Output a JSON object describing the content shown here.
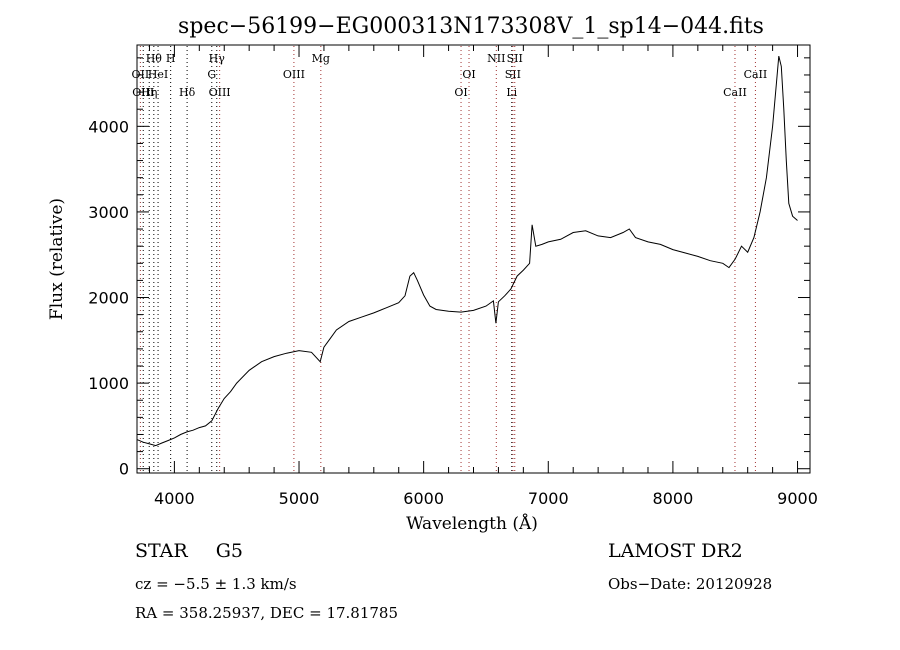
{
  "chart_data": {
    "type": "line",
    "title": "spec−56199−EG000313N173308V_1_sp14−044.fits",
    "xlabel": "Wavelength (Å)",
    "ylabel": "Flux (relative)",
    "xlim": [
      3700,
      9100
    ],
    "ylim": [
      -50,
      4950
    ],
    "xticks": [
      4000,
      5000,
      6000,
      7000,
      8000,
      9000
    ],
    "yticks": [
      0,
      1000,
      2000,
      3000,
      4000
    ],
    "grid": false,
    "series": [
      {
        "x": [
          3700,
          3750,
          3800,
          3850,
          3900,
          3950,
          4000,
          4050,
          4100,
          4150,
          4200,
          4250,
          4300,
          4350,
          4400,
          4450,
          4500,
          4600,
          4700,
          4800,
          4900,
          5000,
          5100,
          5170,
          5200,
          5250,
          5300,
          5400,
          5500,
          5600,
          5700,
          5800,
          5850,
          5890,
          5920,
          5950,
          6000,
          6050,
          6100,
          6200,
          6300,
          6400,
          6500,
          6560,
          6580,
          6600,
          6650,
          6700,
          6750,
          6800,
          6850,
          6870,
          6900,
          6950,
          7000,
          7100,
          7200,
          7300,
          7400,
          7500,
          7600,
          7650,
          7700,
          7800,
          7900,
          8000,
          8100,
          8200,
          8300,
          8400,
          8450,
          8500,
          8550,
          8600,
          8650,
          8700,
          8750,
          8800,
          8830,
          8850,
          8870,
          8890,
          8910,
          8930,
          8960,
          9000
        ],
        "y": [
          340,
          310,
          290,
          270,
          300,
          330,
          360,
          400,
          430,
          450,
          480,
          500,
          560,
          700,
          820,
          900,
          1000,
          1150,
          1250,
          1310,
          1350,
          1380,
          1360,
          1250,
          1420,
          1520,
          1620,
          1720,
          1770,
          1820,
          1880,
          1940,
          2020,
          2250,
          2290,
          2200,
          2030,
          1900,
          1860,
          1840,
          1830,
          1850,
          1900,
          1960,
          1700,
          1950,
          2020,
          2100,
          2250,
          2320,
          2400,
          2850,
          2600,
          2620,
          2650,
          2680,
          2760,
          2780,
          2720,
          2700,
          2760,
          2800,
          2700,
          2650,
          2620,
          2560,
          2520,
          2480,
          2430,
          2400,
          2350,
          2450,
          2600,
          2530,
          2700,
          3000,
          3400,
          4000,
          4500,
          4820,
          4700,
          4200,
          3600,
          3100,
          2950,
          2900
        ]
      }
    ],
    "lines": [
      {
        "wavelength": 3727,
        "label": "OII",
        "row": 2,
        "color": "#a03030"
      },
      {
        "wavelength": 3750,
        "label": "OIII",
        "row": 3,
        "color": "#000000"
      },
      {
        "wavelength": 3798,
        "label": "Hη",
        "row": 3,
        "color": "#000000"
      },
      {
        "wavelength": 3835,
        "label": "Hθ",
        "row": 1,
        "color": "#000000"
      },
      {
        "wavelength": 3869,
        "label": "HeI",
        "row": 2,
        "color": "#000000"
      },
      {
        "wavelength": 3970,
        "label": "H",
        "row": 1,
        "color": "#000000"
      },
      {
        "wavelength": 4102,
        "label": "Hδ",
        "row": 3,
        "color": "#000000"
      },
      {
        "wavelength": 4300,
        "label": "G",
        "row": 2,
        "color": "#000000"
      },
      {
        "wavelength": 4340,
        "label": "Hγ",
        "row": 1,
        "color": "#000000"
      },
      {
        "wavelength": 4363,
        "label": "OIII",
        "row": 3,
        "color": "#a03030"
      },
      {
        "wavelength": 4959,
        "label": "OIII",
        "row": 2,
        "color": "#a03030"
      },
      {
        "wavelength": 5175,
        "label": "Mg",
        "row": 1,
        "color": "#a03030"
      },
      {
        "wavelength": 6300,
        "label": "OI",
        "row": 3,
        "color": "#a03030"
      },
      {
        "wavelength": 6364,
        "label": "OI",
        "row": 2,
        "color": "#a03030"
      },
      {
        "wavelength": 6583,
        "label": "NII",
        "row": 1,
        "color": "#a03030"
      },
      {
        "wavelength": 6707,
        "label": "Li",
        "row": 3,
        "color": "#000000"
      },
      {
        "wavelength": 6716,
        "label": "SII",
        "row": 2,
        "color": "#a03030"
      },
      {
        "wavelength": 6731,
        "label": "SII",
        "row": 1,
        "color": "#a03030"
      },
      {
        "wavelength": 8498,
        "label": "CaII",
        "row": 3,
        "color": "#a03030"
      },
      {
        "wavelength": 8662,
        "label": "CaII",
        "row": 2,
        "color": "#a03030"
      }
    ]
  },
  "footer": {
    "class": "STAR",
    "subclass": "G5",
    "survey": "LAMOST DR2",
    "cz": "cz = −5.5 ± 1.3 km/s",
    "obs_date": "Obs−Date: 20120928",
    "coords": "RA = 358.25937, DEC =  17.81785"
  }
}
